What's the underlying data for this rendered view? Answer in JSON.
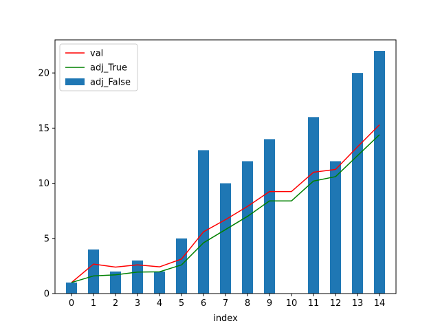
{
  "chart_data": {
    "type": "bar",
    "title": "",
    "xlabel": "index",
    "ylabel": "",
    "categories": [
      "0",
      "1",
      "2",
      "3",
      "4",
      "5",
      "6",
      "7",
      "8",
      "9",
      "10",
      "11",
      "12",
      "13",
      "14"
    ],
    "ylim": [
      0,
      23
    ],
    "yticks": [
      0,
      5,
      10,
      15,
      20
    ],
    "grid": false,
    "legend_position": "top-left",
    "bar_series": {
      "name": "adj_False",
      "color": "#1f77b4",
      "values": [
        1,
        4,
        2,
        3,
        2,
        5,
        13,
        10,
        12,
        14,
        0,
        16,
        12,
        20,
        22
      ]
    },
    "line_series": [
      {
        "name": "val",
        "color": "#ff0000",
        "values": [
          1.0,
          2.67,
          2.4,
          2.6,
          2.42,
          3.13,
          5.6,
          6.7,
          7.9,
          9.25,
          9.25,
          11.0,
          11.25,
          13.3,
          15.3
        ]
      },
      {
        "name": "adj_True",
        "color": "#008000",
        "values": [
          1.0,
          1.6,
          1.7,
          1.95,
          1.97,
          2.6,
          4.6,
          5.8,
          7.0,
          8.4,
          8.4,
          10.2,
          10.6,
          12.5,
          14.4
        ]
      }
    ]
  }
}
